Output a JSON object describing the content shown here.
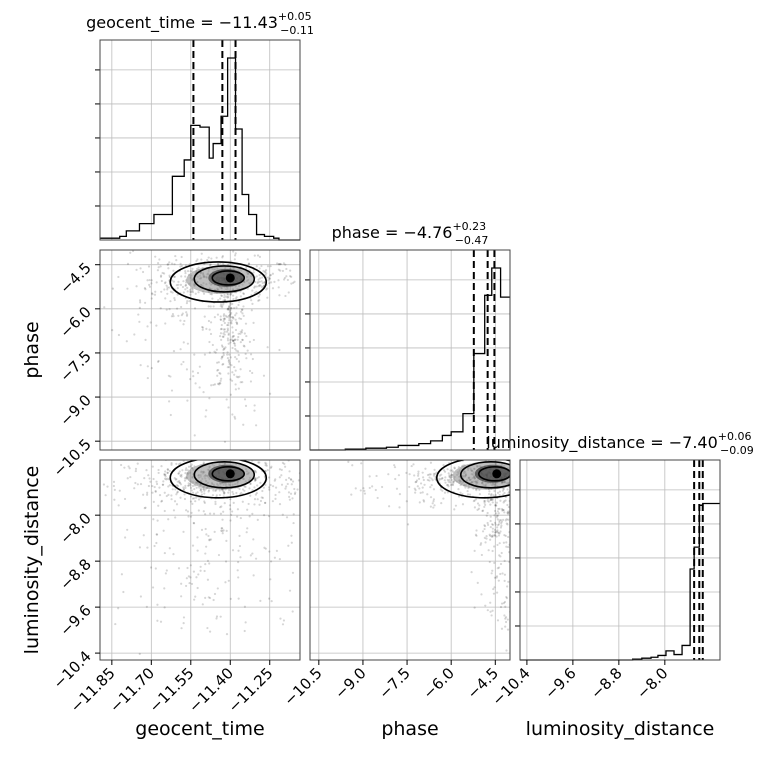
{
  "chart_data": {
    "type": "corner",
    "parameters": [
      "geocent_time",
      "phase",
      "luminosity_distance"
    ],
    "axis_labels": {
      "geocent_time": "geocent_time",
      "phase": "phase",
      "luminosity_distance": "luminosity_distance"
    },
    "titles": {
      "geocent_time": {
        "prefix": "geocent_time = −11.43",
        "upper": "+0.05",
        "lower": "−0.11"
      },
      "phase": {
        "prefix": "phase = −4.76",
        "upper": "+0.23",
        "lower": "−0.47"
      },
      "luminosity_distance": {
        "prefix": "luminosity_distance = −7.40",
        "upper": "+0.06",
        "lower": "−0.09"
      }
    },
    "ranges": {
      "geocent_time": [
        -11.895,
        -11.135
      ],
      "phase": [
        -10.8,
        -4.0
      ],
      "luminosity_distance": [
        -10.52,
        -7.04
      ]
    },
    "ticks": {
      "geocent_time": {
        "values": [
          -11.85,
          -11.7,
          -11.55,
          -11.4,
          -11.25
        ],
        "labels": [
          "−11.85",
          "−11.70",
          "−11.55",
          "−11.40",
          "−11.25"
        ]
      },
      "phase": {
        "values": [
          -10.5,
          -9.0,
          -7.5,
          -6.0,
          -4.5
        ],
        "labels": [
          "−10.5",
          "−9.0",
          "−7.5",
          "−6.0",
          "−4.5"
        ]
      },
      "luminosity_distance": {
        "values": [
          -10.4,
          -9.6,
          -8.8,
          -8.0
        ],
        "labels": [
          "−10.4",
          "−9.6",
          "−8.8",
          "−8.0"
        ]
      }
    },
    "quantiles": {
      "geocent_time": [
        -11.54,
        -11.43,
        -11.38
      ],
      "phase": [
        -5.23,
        -4.76,
        -4.53
      ],
      "luminosity_distance": [
        -7.49,
        -7.4,
        -7.34
      ]
    },
    "histograms": {
      "geocent_time": {
        "edges": [
          -11.895,
          -11.82,
          -11.795,
          -11.745,
          -11.69,
          -11.62,
          -11.575,
          -11.55,
          -11.515,
          -11.48,
          -11.465,
          -11.435,
          -11.41,
          -11.38,
          -11.355,
          -11.33,
          -11.3,
          -11.27,
          -11.235,
          -11.215,
          -11.135
        ],
        "counts": [
          0.01,
          0.02,
          0.05,
          0.09,
          0.14,
          0.35,
          0.44,
          0.63,
          0.62,
          0.45,
          0.53,
          0.68,
          1.0,
          0.61,
          0.25,
          0.14,
          0.03,
          0.02,
          0.01,
          0.0
        ]
      },
      "phase": {
        "edges": [
          -10.8,
          -9.6,
          -8.9,
          -8.2,
          -7.8,
          -7.1,
          -6.7,
          -6.3,
          -6.0,
          -5.6,
          -5.23,
          -4.86,
          -4.62,
          -4.32,
          -4.0
        ],
        "counts": [
          0.0,
          0.005,
          0.01,
          0.015,
          0.025,
          0.035,
          0.05,
          0.08,
          0.1,
          0.2,
          0.53,
          0.85,
          1.0,
          0.84
        ]
      },
      "luminosity_distance": {
        "edges": [
          -10.52,
          -8.56,
          -8.4,
          -8.24,
          -8.12,
          -7.98,
          -7.84,
          -7.7,
          -7.56,
          -7.49,
          -7.4,
          -7.34,
          -7.04
        ],
        "counts": [
          0.0,
          0.005,
          0.01,
          0.015,
          0.025,
          0.05,
          0.03,
          0.08,
          0.5,
          0.62,
          0.85,
          0.86
        ]
      }
    },
    "pair_modes": {
      "geocent_time|phase": {
        "x": -11.4,
        "y": -4.95
      },
      "geocent_time|luminosity_distance": {
        "x": -11.4,
        "y": -7.28
      },
      "phase|luminosity_distance": {
        "x": -4.45,
        "y": -7.28
      }
    },
    "grid": true
  }
}
